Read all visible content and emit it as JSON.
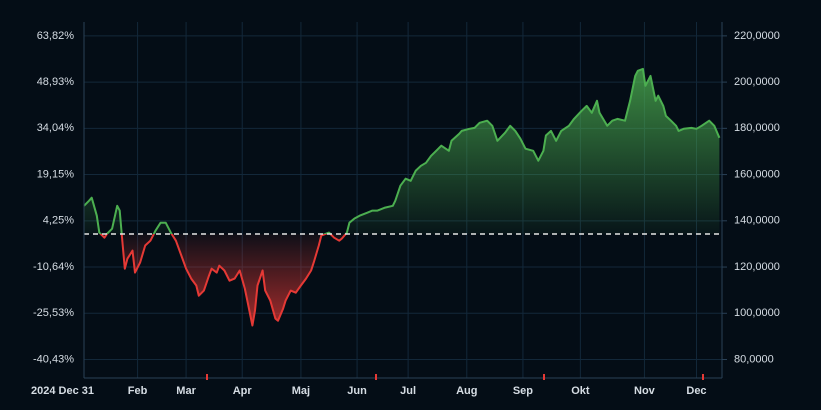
{
  "chart_data": {
    "type": "area",
    "x": [
      0,
      2,
      3,
      5,
      6,
      8,
      9,
      11,
      13,
      14,
      15,
      16,
      17,
      19,
      20,
      22,
      24,
      26,
      28,
      30,
      32,
      34,
      36,
      38,
      40,
      42,
      44,
      45,
      47,
      49,
      50,
      52,
      53,
      55,
      57,
      59,
      61,
      63,
      64,
      66,
      67,
      68,
      70,
      71,
      73,
      75,
      76,
      78,
      79,
      81,
      83,
      85,
      87,
      89,
      90,
      92,
      93,
      96,
      98,
      100,
      101,
      103,
      104,
      106,
      108,
      111,
      113,
      115,
      118,
      121,
      122,
      124,
      126,
      128,
      130,
      132,
      134,
      136,
      138,
      140,
      143,
      144,
      147,
      148,
      151,
      153,
      155,
      158,
      160,
      162,
      165,
      167,
      169,
      171,
      173,
      176,
      178,
      180,
      181,
      183,
      185,
      187,
      190,
      192,
      195,
      197,
      199,
      201,
      202,
      205,
      207,
      209,
      212,
      214,
      216,
      217,
      219,
      220,
      222,
      224,
      225,
      227,
      228,
      230,
      232,
      233,
      235,
      238,
      240,
      242,
      245,
      247,
      249
    ],
    "series": [
      {
        "axis": "y2",
        "values": [
          146.5,
          148.7,
          150.0,
          142.2,
          134.9,
          132.7,
          134.4,
          136.6,
          146.5,
          144.4,
          131.4,
          119.3,
          123.6,
          127.1,
          117.6,
          121.9,
          129.3,
          131.4,
          135.7,
          139.2,
          139.2,
          134.9,
          131.4,
          125.4,
          119.3,
          115.0,
          112.0,
          107.6,
          109.8,
          116.3,
          119.3,
          117.6,
          120.6,
          118.5,
          114.1,
          115.0,
          118.5,
          110.7,
          105.5,
          94.7,
          101.2,
          112.0,
          118.5,
          109.8,
          105.5,
          97.7,
          96.8,
          102.0,
          105.5,
          109.8,
          108.9,
          112.0,
          115.0,
          118.5,
          121.9,
          129.3,
          133.6,
          134.9,
          132.7,
          131.4,
          132.3,
          134.9,
          139.2,
          141.0,
          142.2,
          143.5,
          144.4,
          144.4,
          145.7,
          146.5,
          148.7,
          155.2,
          158.2,
          157.3,
          161.7,
          163.8,
          165.1,
          168.1,
          170.3,
          172.5,
          170.3,
          174.6,
          177.6,
          178.9,
          179.8,
          180.2,
          182.4,
          183.3,
          181.1,
          174.6,
          178.1,
          181.1,
          178.9,
          175.5,
          171.2,
          170.3,
          166.0,
          170.3,
          176.9,
          178.9,
          174.6,
          178.9,
          181.1,
          184.1,
          187.6,
          189.7,
          186.7,
          191.9,
          186.7,
          181.1,
          183.3,
          184.1,
          183.3,
          191.9,
          202.7,
          204.9,
          205.7,
          198.4,
          202.7,
          191.9,
          194.1,
          189.7,
          185.4,
          183.3,
          181.1,
          178.9,
          179.8,
          180.2,
          179.8,
          181.1,
          183.3,
          181.1,
          175.9
        ]
      }
    ],
    "baseline": 134.29,
    "up_color": "#4caf50",
    "down_color": "#e53935",
    "xlim": [
      0,
      250
    ],
    "xticks": [
      {
        "value": 0,
        "label": "2024 Dec 31"
      },
      {
        "value": 21,
        "label": "Feb"
      },
      {
        "value": 40,
        "label": "Mar"
      },
      {
        "value": 62,
        "label": "Apr"
      },
      {
        "value": 85,
        "label": "Maj"
      },
      {
        "value": 107,
        "label": "Jun"
      },
      {
        "value": 127,
        "label": "Jul"
      },
      {
        "value": 150,
        "label": "Aug"
      },
      {
        "value": 172,
        "label": "Sep"
      },
      {
        "value": 194.5,
        "label": "Okt"
      },
      {
        "value": 219.6,
        "label": "Nov"
      },
      {
        "value": 240,
        "label": "Dec"
      }
    ],
    "ylim": [
      -46.38,
      68.29
    ],
    "yticks": [
      {
        "value": 63.82,
        "label": "63,82%"
      },
      {
        "value": 48.93,
        "label": "48,93%"
      },
      {
        "value": 34.04,
        "label": "34,04%"
      },
      {
        "value": 19.15,
        "label": "19,15%"
      },
      {
        "value": 4.25,
        "label": "4,25%"
      },
      {
        "value": -10.64,
        "label": "-10,64%"
      },
      {
        "value": -25.53,
        "label": "-25,53%"
      },
      {
        "value": -40.43,
        "label": "-40,43%"
      }
    ],
    "y2lim": [
      72,
      226
    ],
    "y2ticks": [
      {
        "value": 220,
        "label": "220,0000"
      },
      {
        "value": 200,
        "label": "200,0000"
      },
      {
        "value": 180,
        "label": "180,0000"
      },
      {
        "value": 160,
        "label": "160,0000"
      },
      {
        "value": 140,
        "label": "140,0000"
      },
      {
        "value": 120,
        "label": "120,0000"
      },
      {
        "value": 100,
        "label": "100,0000"
      },
      {
        "value": 80,
        "label": "80,0000"
      }
    ],
    "grid": true
  }
}
